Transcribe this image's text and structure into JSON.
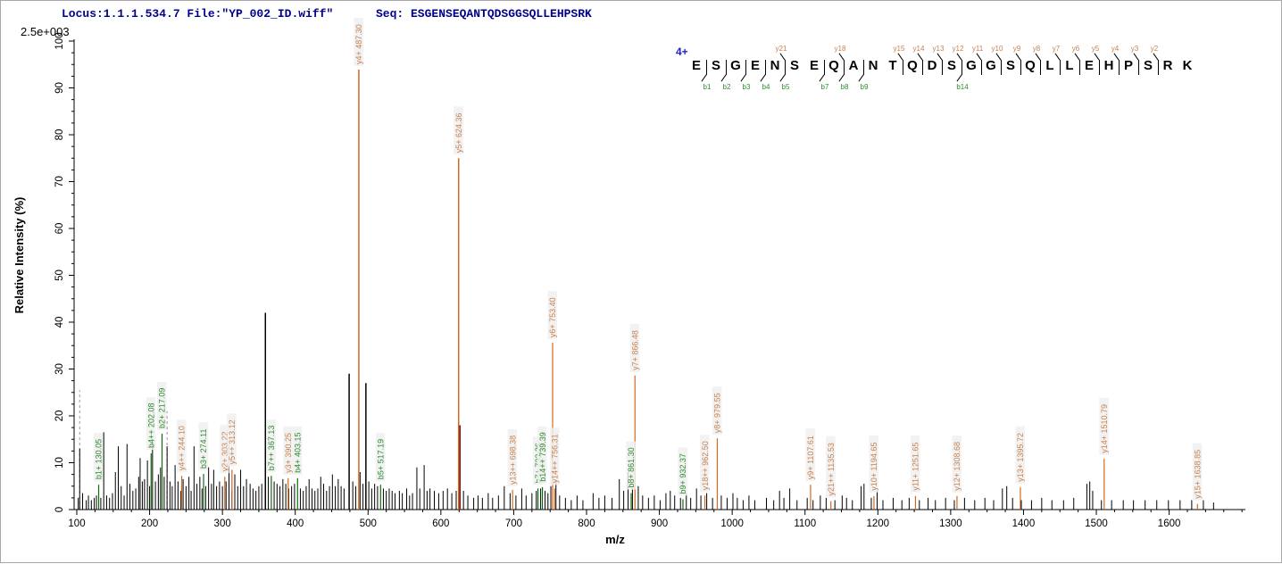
{
  "header": {
    "locus_text": "Locus:1.1.1.534.7 File:\"YP_002_ID.wiff\"",
    "seq_text": "Seq: ESGENSEQANTQDSGGSQLLEHPSRK"
  },
  "colors": {
    "axis": "#000000",
    "peak": "#000000",
    "b_ion_line": "#0f6b0f",
    "b_ion_label": "#2e8b2e",
    "y_ion_line": "#d2691e",
    "y_ion_label": "#c8824f",
    "marker_dash": "#999999",
    "label_bg": "#f0f0f0",
    "header_text": "#00008b",
    "charge_blue": "#2222cc"
  },
  "fragmentation": {
    "charge_label": "4+",
    "sequence": "ESGENSEQANTQDSGGSQLLEHPSRK",
    "residues": [
      "E",
      "S",
      "G",
      "E",
      "N",
      "S",
      "E",
      "Q",
      "A",
      "N",
      "T",
      "Q",
      "D",
      "S",
      "G",
      "G",
      "S",
      "Q",
      "L",
      "L",
      "E",
      "H",
      "P",
      "S",
      "R",
      "K"
    ],
    "boundaries": [
      {
        "after": 1,
        "b": "b1"
      },
      {
        "after": 2,
        "b": "b2"
      },
      {
        "after": 3,
        "b": "b3"
      },
      {
        "after": 4,
        "b": "b4"
      },
      {
        "after": 5,
        "b": "b5",
        "y": "y21"
      },
      {
        "after": 7,
        "b": "b7"
      },
      {
        "after": 8,
        "b": "b8",
        "y": "y18"
      },
      {
        "after": 9,
        "b": "b9"
      },
      {
        "after": 11,
        "y": "y15"
      },
      {
        "after": 12,
        "y": "y14"
      },
      {
        "after": 13,
        "y": "y13"
      },
      {
        "after": 14,
        "b": "b14",
        "y": "y12"
      },
      {
        "after": 15,
        "y": "y11"
      },
      {
        "after": 16,
        "y": "y10"
      },
      {
        "after": 17,
        "y": "y9"
      },
      {
        "after": 18,
        "y": "y8"
      },
      {
        "after": 19,
        "y": "y7"
      },
      {
        "after": 20,
        "y": "y6"
      },
      {
        "after": 21,
        "y": "y5"
      },
      {
        "after": 22,
        "y": "y4"
      },
      {
        "after": 23,
        "y": "y3"
      },
      {
        "after": 24,
        "y": "y2"
      }
    ]
  },
  "chart_data": {
    "type": "bar",
    "subtype": "ms2-spectrum-stick-plot",
    "title": "",
    "xlabel": "m/z",
    "ylabel": "Relative  Intensity (%)",
    "y_scale_label": "2.5e+003",
    "xlim": [
      100,
      1710
    ],
    "ylim": [
      0,
      100
    ],
    "x_ticks": [
      100,
      200,
      300,
      400,
      500,
      600,
      700,
      800,
      900,
      1000,
      1100,
      1200,
      1300,
      1400,
      1500,
      1600
    ],
    "y_ticks": [
      0,
      10,
      20,
      30,
      40,
      50,
      60,
      70,
      80,
      90,
      100
    ],
    "grid": false,
    "precursor_markers": [
      [
        104,
        25.5
      ],
      [
        224,
        21.0
      ]
    ],
    "annotated_peaks": [
      {
        "label": "b1+ 130.05",
        "ion": "b",
        "mz": 130.05,
        "pct": 5.3
      },
      {
        "label": "b4++ 202.08",
        "ion": "b",
        "mz": 202.08,
        "pct": 12.0
      },
      {
        "label": "b2+ 217.09",
        "ion": "b",
        "mz": 217.09,
        "pct": 16.2
      },
      {
        "label": "b3+ 274.11",
        "ion": "b",
        "mz": 274.11,
        "pct": 7.6
      },
      {
        "label": "b7++ 367.13",
        "ion": "b",
        "mz": 367.13,
        "pct": 7.2
      },
      {
        "label": "b4+ 403.15",
        "ion": "b",
        "mz": 403.15,
        "pct": 6.7
      },
      {
        "label": "b5+ 517.19",
        "ion": "b",
        "mz": 517.19,
        "pct": 5.3
      },
      {
        "label": "b7+ 733.26",
        "ion": "b",
        "mz": 733.26,
        "pct": 4.5
      },
      {
        "label": "b14++ 739.39",
        "ion": "b",
        "mz": 739.39,
        "pct": 4.8
      },
      {
        "label": "b8+ 861.30",
        "ion": "b",
        "mz": 861.3,
        "pct": 3.5
      },
      {
        "label": "b9+ 932.37",
        "ion": "b",
        "mz": 932.37,
        "pct": 2.2
      },
      {
        "label": "y4++ 244.10",
        "ion": "y",
        "mz": 244.1,
        "pct": 7.2
      },
      {
        "label": "y2+ 303.22",
        "ion": "y",
        "mz": 303.22,
        "pct": 7.0
      },
      {
        "label": "y5++ 313.12",
        "ion": "y",
        "mz": 313.12,
        "pct": 8.5
      },
      {
        "label": "y3+ 390.25",
        "ion": "y",
        "mz": 390.25,
        "pct": 6.7
      },
      {
        "label": "y4+ 487.30",
        "ion": "y",
        "mz": 487.3,
        "pct": 93.9
      },
      {
        "label": "y5+ 624.36",
        "ion": "y",
        "mz": 624.36,
        "pct": 75.0
      },
      {
        "label": "y13++ 698.38",
        "ion": "y",
        "mz": 698.38,
        "pct": 4.2
      },
      {
        "label": "y6+ 753.40",
        "ion": "y",
        "mz": 753.4,
        "pct": 35.6
      },
      {
        "label": "y14++ 756.31",
        "ion": "y",
        "mz": 756.31,
        "pct": 4.5
      },
      {
        "label": "y7+ 866.48",
        "ion": "y",
        "mz": 866.48,
        "pct": 28.6
      },
      {
        "label": "y18++ 962.50",
        "ion": "y",
        "mz": 962.5,
        "pct": 3.0
      },
      {
        "label": "y8+ 979.55",
        "ion": "y",
        "mz": 979.55,
        "pct": 15.2
      },
      {
        "label": "y9+ 1107.61",
        "ion": "y",
        "mz": 1107.61,
        "pct": 5.3
      },
      {
        "label": "y21++ 1135.53",
        "ion": "y",
        "mz": 1135.53,
        "pct": 1.8
      },
      {
        "label": "y10+ 1194.65",
        "ion": "y",
        "mz": 1194.65,
        "pct": 2.9
      },
      {
        "label": "y11+ 1251.65",
        "ion": "y",
        "mz": 1251.65,
        "pct": 2.9
      },
      {
        "label": "y12+ 1308.68",
        "ion": "y",
        "mz": 1308.68,
        "pct": 2.9
      },
      {
        "label": "y13+ 1395.72",
        "ion": "y",
        "mz": 1395.72,
        "pct": 4.8
      },
      {
        "label": "y14+ 1510.79",
        "ion": "y",
        "mz": 1510.79,
        "pct": 10.9
      },
      {
        "label": "y15+ 1638.85",
        "ion": "y",
        "mz": 1638.85,
        "pct": 1.2
      }
    ],
    "special_peaks": [
      [
        626,
        18.0,
        "#7a1f1f"
      ]
    ],
    "background_peaks": [
      [
        102,
        2.5
      ],
      [
        104,
        13
      ],
      [
        108,
        3.5
      ],
      [
        113,
        2
      ],
      [
        116,
        3
      ],
      [
        120,
        2
      ],
      [
        124,
        2.5
      ],
      [
        127,
        3
      ],
      [
        133,
        2.5
      ],
      [
        137,
        16.5
      ],
      [
        141,
        3
      ],
      [
        145,
        2.5
      ],
      [
        149,
        3.5
      ],
      [
        153,
        8
      ],
      [
        157,
        13.5
      ],
      [
        161,
        5
      ],
      [
        165,
        3
      ],
      [
        169,
        14
      ],
      [
        173,
        5.5
      ],
      [
        177,
        4
      ],
      [
        181,
        4.5
      ],
      [
        185,
        7
      ],
      [
        187,
        11
      ],
      [
        190,
        6
      ],
      [
        193,
        6.5
      ],
      [
        197,
        10.5
      ],
      [
        200,
        5
      ],
      [
        204,
        14.5
      ],
      [
        208,
        6
      ],
      [
        212,
        7.5
      ],
      [
        215,
        9
      ],
      [
        220,
        7
      ],
      [
        224,
        13.5
      ],
      [
        228,
        6
      ],
      [
        231,
        5
      ],
      [
        235,
        9.5
      ],
      [
        239,
        6
      ],
      [
        243,
        4
      ],
      [
        246,
        6.5
      ],
      [
        250,
        5
      ],
      [
        254,
        7
      ],
      [
        257,
        4
      ],
      [
        261,
        13.5
      ],
      [
        265,
        5.5
      ],
      [
        269,
        7
      ],
      [
        272,
        4.5
      ],
      [
        277,
        5
      ],
      [
        281,
        9
      ],
      [
        285,
        5.5
      ],
      [
        288,
        8.5
      ],
      [
        292,
        5
      ],
      [
        296,
        6
      ],
      [
        300,
        5
      ],
      [
        305,
        6
      ],
      [
        309,
        13.8
      ],
      [
        313,
        4
      ],
      [
        317,
        7.5
      ],
      [
        321,
        5
      ],
      [
        325,
        8.5
      ],
      [
        329,
        5
      ],
      [
        333,
        6.5
      ],
      [
        338,
        5.5
      ],
      [
        342,
        4.5
      ],
      [
        346,
        4
      ],
      [
        350,
        5
      ],
      [
        354,
        5.5
      ],
      [
        359,
        42
      ],
      [
        363,
        7
      ],
      [
        371,
        6
      ],
      [
        375,
        5.5
      ],
      [
        379,
        5
      ],
      [
        383,
        6.5
      ],
      [
        387,
        5.5
      ],
      [
        391,
        4.5
      ],
      [
        395,
        5
      ],
      [
        399,
        5.5
      ],
      [
        407,
        4.5
      ],
      [
        411,
        4
      ],
      [
        415,
        5
      ],
      [
        419,
        6.5
      ],
      [
        423,
        4.5
      ],
      [
        427,
        4
      ],
      [
        431,
        4.5
      ],
      [
        435,
        7
      ],
      [
        439,
        5.5
      ],
      [
        443,
        4
      ],
      [
        447,
        5
      ],
      [
        451,
        7.5
      ],
      [
        455,
        5
      ],
      [
        459,
        6.5
      ],
      [
        463,
        5
      ],
      [
        467,
        4.5
      ],
      [
        474,
        29
      ],
      [
        479,
        6
      ],
      [
        483,
        5
      ],
      [
        489,
        8
      ],
      [
        493,
        5.5
      ],
      [
        497,
        27
      ],
      [
        501,
        6
      ],
      [
        505,
        4.5
      ],
      [
        509,
        5.5
      ],
      [
        513,
        5
      ],
      [
        521,
        4.5
      ],
      [
        525,
        4
      ],
      [
        529,
        4.5
      ],
      [
        533,
        4
      ],
      [
        537,
        3.5
      ],
      [
        543,
        4
      ],
      [
        547,
        3.5
      ],
      [
        553,
        4.5
      ],
      [
        557,
        3
      ],
      [
        561,
        3.5
      ],
      [
        567,
        9
      ],
      [
        571,
        4.5
      ],
      [
        577,
        9.5
      ],
      [
        581,
        4
      ],
      [
        585,
        4.5
      ],
      [
        591,
        4
      ],
      [
        597,
        3.5
      ],
      [
        603,
        4
      ],
      [
        609,
        4.5
      ],
      [
        615,
        3.5
      ],
      [
        621,
        4
      ],
      [
        631,
        4
      ],
      [
        637,
        3
      ],
      [
        645,
        2.5
      ],
      [
        651,
        3
      ],
      [
        657,
        2.5
      ],
      [
        665,
        3.5
      ],
      [
        671,
        2.5
      ],
      [
        679,
        3
      ],
      [
        687,
        5
      ],
      [
        695,
        3.5
      ],
      [
        703,
        3
      ],
      [
        711,
        4.5
      ],
      [
        717,
        3
      ],
      [
        725,
        3.5
      ],
      [
        731,
        4
      ],
      [
        737,
        4.5
      ],
      [
        743,
        4
      ],
      [
        747,
        3.5
      ],
      [
        751,
        5
      ],
      [
        758,
        6.5
      ],
      [
        763,
        3
      ],
      [
        771,
        2.5
      ],
      [
        779,
        2
      ],
      [
        787,
        3
      ],
      [
        795,
        2
      ],
      [
        809,
        3.5
      ],
      [
        817,
        2.5
      ],
      [
        825,
        3
      ],
      [
        835,
        2.5
      ],
      [
        845,
        6.5
      ],
      [
        851,
        4
      ],
      [
        857,
        8
      ],
      [
        863,
        4.5
      ],
      [
        871,
        5
      ],
      [
        877,
        3
      ],
      [
        885,
        2.5
      ],
      [
        893,
        3
      ],
      [
        901,
        2
      ],
      [
        909,
        3.5
      ],
      [
        915,
        4
      ],
      [
        921,
        3
      ],
      [
        929,
        2.5
      ],
      [
        937,
        3.5
      ],
      [
        943,
        2.5
      ],
      [
        951,
        4.5
      ],
      [
        957,
        3
      ],
      [
        965,
        3.5
      ],
      [
        973,
        2.5
      ],
      [
        985,
        3
      ],
      [
        993,
        2.5
      ],
      [
        1001,
        3.5
      ],
      [
        1007,
        2.5
      ],
      [
        1015,
        2
      ],
      [
        1023,
        3
      ],
      [
        1031,
        2
      ],
      [
        1047,
        2.5
      ],
      [
        1057,
        2
      ],
      [
        1065,
        4
      ],
      [
        1071,
        2.5
      ],
      [
        1079,
        4.5
      ],
      [
        1089,
        2
      ],
      [
        1103,
        2.5
      ],
      [
        1111,
        2
      ],
      [
        1121,
        3
      ],
      [
        1129,
        2.5
      ],
      [
        1141,
        2
      ],
      [
        1151,
        3
      ],
      [
        1157,
        2.5
      ],
      [
        1165,
        2
      ],
      [
        1177,
        5
      ],
      [
        1181,
        5.5
      ],
      [
        1191,
        2.5
      ],
      [
        1199,
        4
      ],
      [
        1207,
        2
      ],
      [
        1221,
        2.5
      ],
      [
        1233,
        2
      ],
      [
        1243,
        2.5
      ],
      [
        1257,
        2
      ],
      [
        1269,
        2.5
      ],
      [
        1279,
        2
      ],
      [
        1293,
        2.5
      ],
      [
        1305,
        2
      ],
      [
        1319,
        2.5
      ],
      [
        1333,
        2
      ],
      [
        1347,
        2.5
      ],
      [
        1359,
        2
      ],
      [
        1371,
        4.5
      ],
      [
        1377,
        5
      ],
      [
        1385,
        2.5
      ],
      [
        1397,
        2
      ],
      [
        1411,
        2
      ],
      [
        1425,
        2.5
      ],
      [
        1439,
        2
      ],
      [
        1455,
        2
      ],
      [
        1469,
        2.5
      ],
      [
        1487,
        5.5
      ],
      [
        1491,
        6
      ],
      [
        1495,
        4
      ],
      [
        1507,
        2
      ],
      [
        1521,
        2
      ],
      [
        1537,
        2
      ],
      [
        1551,
        2
      ],
      [
        1567,
        2
      ],
      [
        1583,
        2
      ],
      [
        1599,
        2
      ],
      [
        1615,
        2
      ],
      [
        1631,
        2
      ],
      [
        1647,
        2
      ],
      [
        1661,
        1.5
      ]
    ]
  }
}
